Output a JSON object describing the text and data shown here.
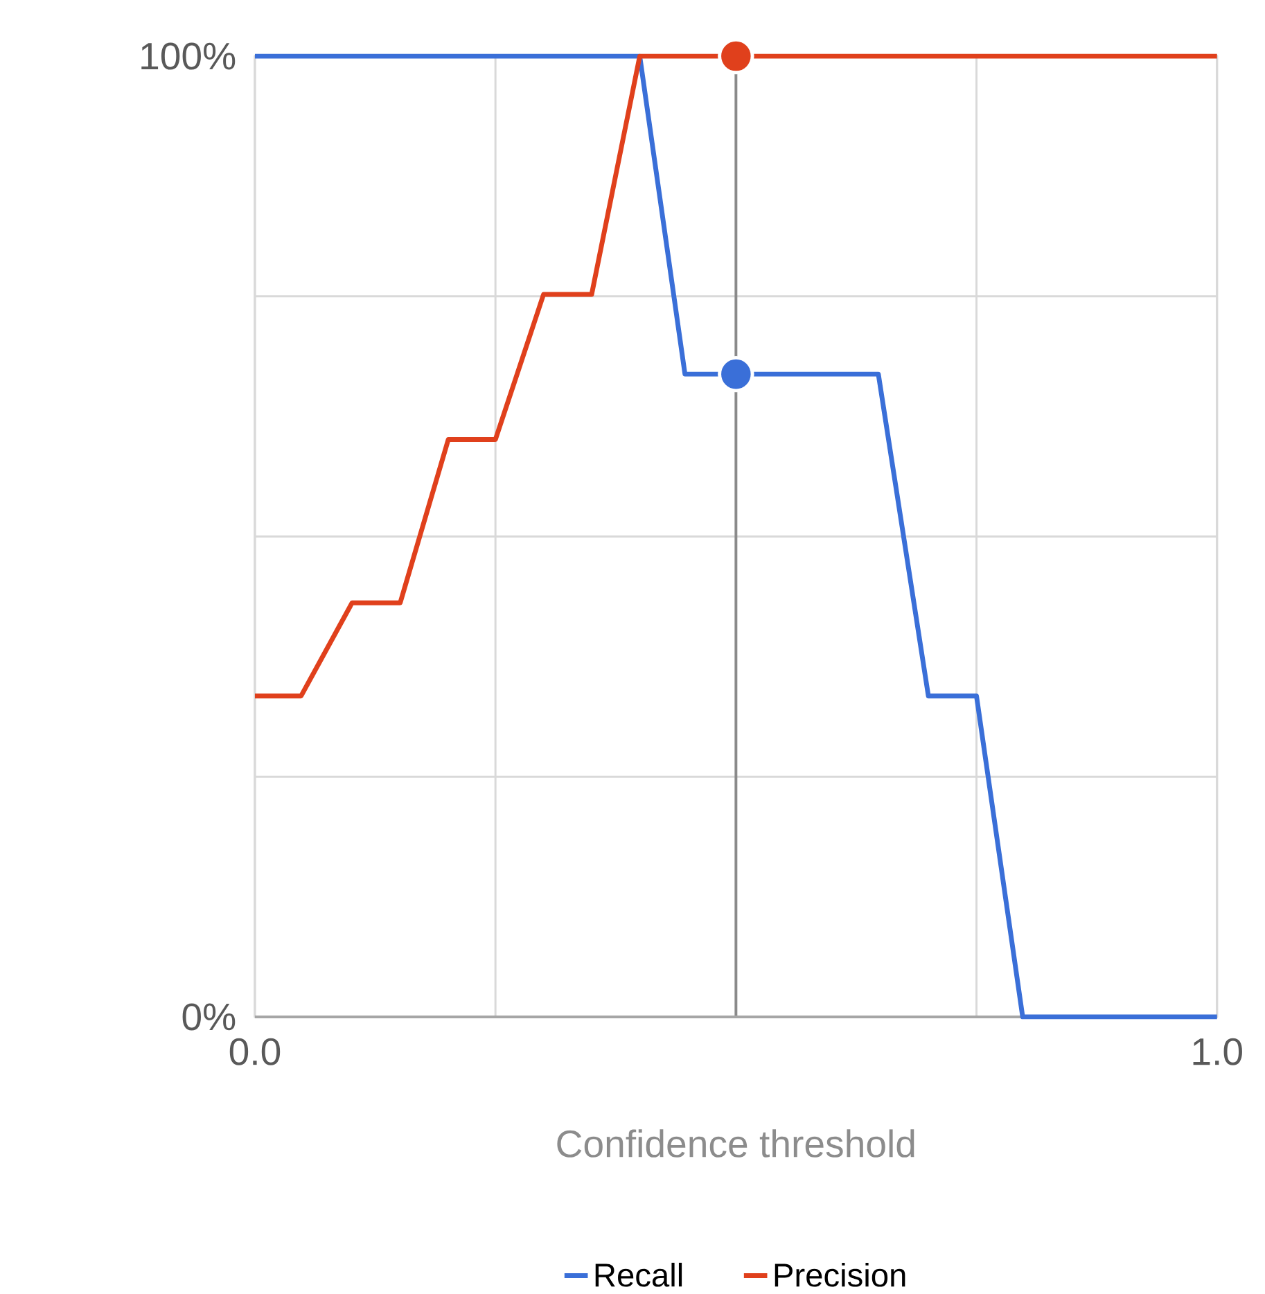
{
  "chart_data": {
    "type": "line",
    "xlabel": "Confidence threshold",
    "x": [
      0,
      0.4,
      0.447,
      0.648,
      0.7,
      0.75,
      0.798,
      1
    ],
    "series": [
      {
        "name": "Recall",
        "color": "#3a6fd8",
        "values": [
          100,
          100,
          66.9,
          66.9,
          33.4,
          33.4,
          0,
          0
        ]
      },
      {
        "name": "Precision",
        "color": "#e0401c",
        "x": [
          0,
          0.048,
          0.101,
          0.151,
          0.201,
          0.25,
          0.3,
          0.35,
          0.4,
          1
        ],
        "values": [
          33.4,
          33.4,
          43.1,
          43.1,
          60.1,
          60.1,
          75.2,
          75.2,
          100,
          100
        ]
      },
      {
        "type": "scatter",
        "color": "#3a6fd8",
        "x": [
          0.5
        ],
        "values": [
          66.9
        ],
        "marker": "circle"
      },
      {
        "type": "scatter",
        "color": "#e0401c",
        "x": [
          0.5
        ],
        "values": [
          100
        ],
        "marker": "circle"
      }
    ],
    "xlim": [
      0,
      1
    ],
    "ylim": [
      0,
      100
    ],
    "xticks": [
      {
        "value": 0,
        "label": "0.0"
      },
      {
        "value": 0.25,
        "label": null
      },
      {
        "value": 0.5,
        "label": null
      },
      {
        "value": 0.75,
        "label": null
      },
      {
        "value": 1,
        "label": "1.0"
      }
    ],
    "yticks": [
      {
        "value": 0,
        "label": "0%"
      },
      {
        "value": 25,
        "label": null
      },
      {
        "value": 50,
        "label": null
      },
      {
        "value": 75,
        "label": null
      },
      {
        "value": 100,
        "label": "100%"
      }
    ],
    "ref_lines": [
      {
        "axis": "x",
        "value": 0.5,
        "color": "#8a8a8a"
      }
    ],
    "grid": true,
    "legend": "bottom",
    "line_style": "solid",
    "marker": "none"
  }
}
